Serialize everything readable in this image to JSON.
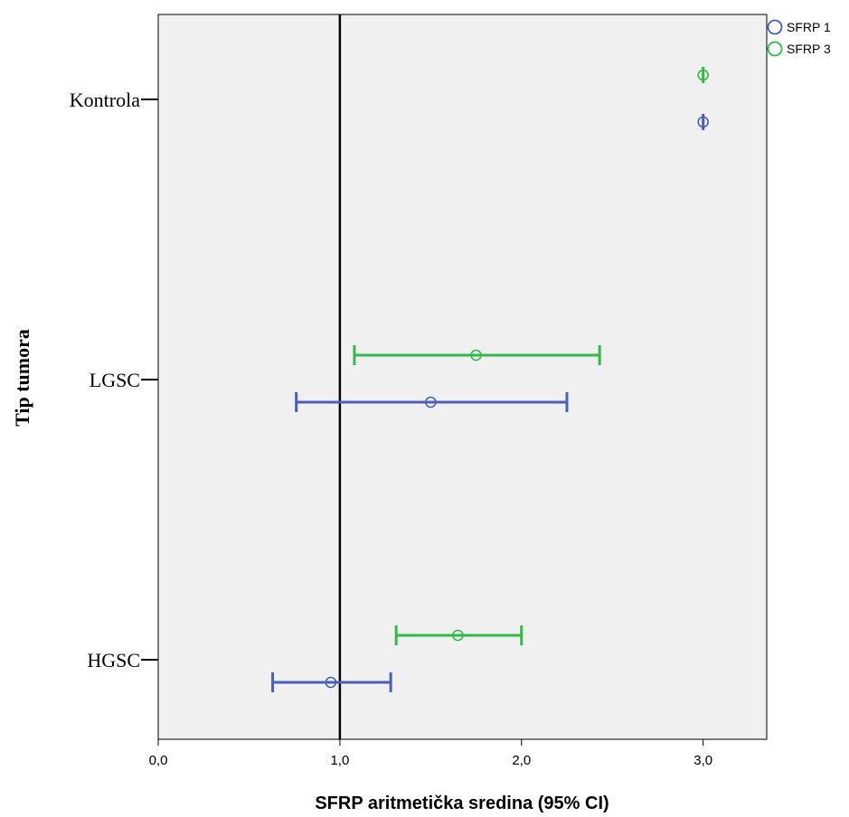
{
  "chart_data": {
    "type": "errorbar",
    "orientation": "horizontal",
    "xlabel": "SFRP aritmetička sredina (95% CI)",
    "ylabel": "Tip tumora",
    "xlim": [
      0,
      3.35
    ],
    "x_ticks": [
      0,
      1,
      2,
      3
    ],
    "x_tick_labels": [
      "0,0",
      "1,0",
      "2,0",
      "3,0"
    ],
    "categories": [
      "Kontrola",
      "LGSC",
      "HGSC"
    ],
    "reference_line": 1.0,
    "grid": false,
    "legend_position": "top-right",
    "series": [
      {
        "name": "SFRP 1",
        "color": "#4a5fb5",
        "points": [
          {
            "category": "Kontrola",
            "mean": 3.0,
            "lower": 3.0,
            "upper": 3.0
          },
          {
            "category": "LGSC",
            "mean": 1.5,
            "lower": 0.76,
            "upper": 2.25
          },
          {
            "category": "HGSC",
            "mean": 0.95,
            "lower": 0.63,
            "upper": 1.28
          }
        ]
      },
      {
        "name": "SFRP 3",
        "color": "#33b84a",
        "points": [
          {
            "category": "Kontrola",
            "mean": 3.0,
            "lower": 3.0,
            "upper": 3.0
          },
          {
            "category": "LGSC",
            "mean": 1.75,
            "lower": 1.08,
            "upper": 2.43
          },
          {
            "category": "HGSC",
            "mean": 1.65,
            "lower": 1.31,
            "upper": 2.0
          }
        ]
      }
    ]
  }
}
